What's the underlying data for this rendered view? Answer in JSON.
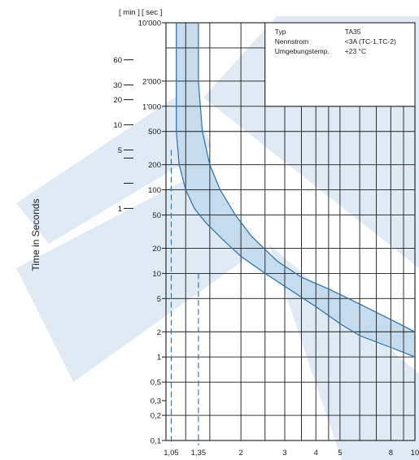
{
  "chart_data": {
    "type": "line",
    "title": "",
    "ylabel": "Time in Seconds",
    "xlabel": "",
    "x_scale": "log",
    "y_scale": "log",
    "xlim": [
      1,
      10
    ],
    "ylim": [
      0.1,
      10000
    ],
    "unit_labels": {
      "min": "[ min ]",
      "sec": "[ sec ]"
    },
    "x_ticks": [
      {
        "value": 1.05,
        "label": "1,05"
      },
      {
        "value": 1.35,
        "label": "1,35"
      },
      {
        "value": 2,
        "label": "2"
      },
      {
        "value": 3,
        "label": "3"
      },
      {
        "value": 4,
        "label": "4"
      },
      {
        "value": 5,
        "label": "5"
      },
      {
        "value": 8,
        "label": "8"
      },
      {
        "value": 10,
        "label": "10"
      }
    ],
    "x_grid": [
      1.05,
      1.2,
      1.35,
      1.5,
      2,
      2.5,
      3,
      3.5,
      4,
      4.5,
      5,
      6,
      7,
      8,
      9,
      10
    ],
    "y_ticks_sec": [
      {
        "value": 10000,
        "label": "10'000"
      },
      {
        "value": 2000,
        "label": "2'000"
      },
      {
        "value": 1000,
        "label": "1'000"
      },
      {
        "value": 500,
        "label": "500"
      },
      {
        "value": 200,
        "label": "200"
      },
      {
        "value": 100,
        "label": "100"
      },
      {
        "value": 50,
        "label": "50"
      },
      {
        "value": 20,
        "label": "20"
      },
      {
        "value": 10,
        "label": "10"
      },
      {
        "value": 5,
        "label": "5"
      },
      {
        "value": 2,
        "label": "2"
      },
      {
        "value": 1,
        "label": "1"
      },
      {
        "value": 0.5,
        "label": "0,5"
      },
      {
        "value": 0.3,
        "label": "0,3"
      },
      {
        "value": 0.2,
        "label": "0,2"
      },
      {
        "value": 0.1,
        "label": "0,1"
      }
    ],
    "y_grid": [
      0.1,
      0.2,
      0.5,
      1,
      2,
      5,
      10,
      20,
      50,
      100,
      200,
      500,
      1000,
      2000,
      5000,
      10000
    ],
    "y_ticks_min": [
      {
        "value": 3600,
        "label": "60"
      },
      {
        "value": 1800,
        "label": "30"
      },
      {
        "value": 1200,
        "label": "20"
      },
      {
        "value": 600,
        "label": "10"
      },
      {
        "value": 300,
        "label": "5"
      },
      {
        "value": 240,
        "label": ""
      },
      {
        "value": 120,
        "label": ""
      },
      {
        "value": 60,
        "label": "1"
      }
    ],
    "series": [
      {
        "values": [
          [
            1.1,
            10000
          ],
          [
            1.1,
            2000
          ],
          [
            1.1,
            500
          ],
          [
            1.13,
            200
          ],
          [
            1.2,
            100
          ],
          [
            1.3,
            60
          ],
          [
            1.45,
            40
          ],
          [
            1.7,
            25
          ],
          [
            2,
            16
          ],
          [
            2.5,
            10
          ],
          [
            3,
            7
          ],
          [
            4,
            4
          ],
          [
            5,
            2.5
          ],
          [
            6,
            1.8
          ],
          [
            8,
            1.3
          ],
          [
            10,
            1
          ]
        ]
      },
      {
        "values": [
          [
            1.35,
            10000
          ],
          [
            1.35,
            2000
          ],
          [
            1.4,
            500
          ],
          [
            1.5,
            200
          ],
          [
            1.65,
            100
          ],
          [
            1.9,
            50
          ],
          [
            2.2,
            28
          ],
          [
            2.8,
            14
          ],
          [
            3.5,
            9
          ],
          [
            4.5,
            6.5
          ],
          [
            6,
            4.3
          ],
          [
            8,
            2.8
          ],
          [
            10,
            2
          ]
        ]
      }
    ],
    "reference_lines_x": [
      1.05,
      1.35
    ],
    "reference_lines_top": [
      300,
      10
    ],
    "colors": {
      "band_fill": "#c5dcef",
      "curve": "#2b6fa6",
      "grid": "#1a1a1a",
      "watermark": "#dde8f4"
    }
  },
  "info_box": {
    "rows": [
      {
        "label": "Typ",
        "value": "TA35"
      },
      {
        "label": "Nennstrom",
        "value": "<3A (TC-1,TC-2)"
      },
      {
        "label": "Umgebungstemp.",
        "value": "+23 °C"
      }
    ]
  }
}
